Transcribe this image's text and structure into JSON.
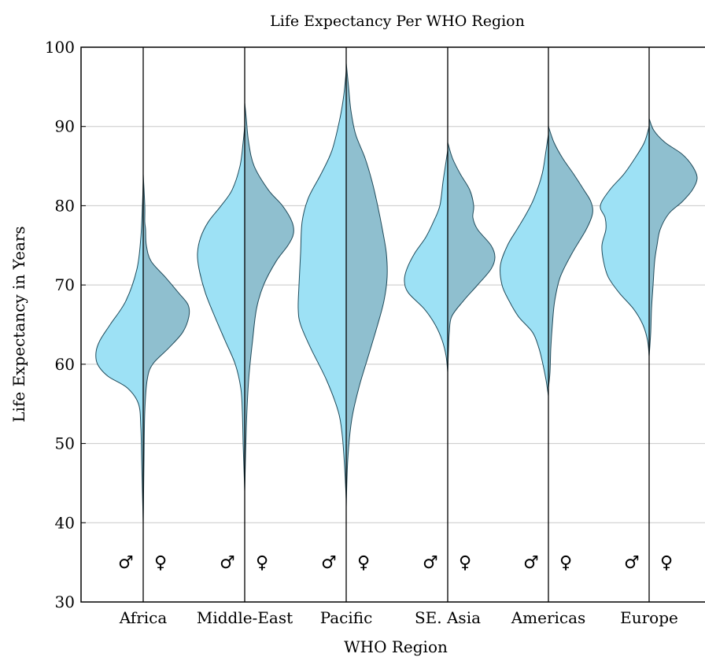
{
  "chart_data": {
    "type": "violin",
    "title": "Life Expectancy Per WHO Region",
    "xlabel": "WHO Region",
    "ylabel": "Life Expectancy in Years",
    "ylim": [
      30,
      100
    ],
    "yticks": [
      30,
      40,
      50,
      60,
      70,
      80,
      90,
      100
    ],
    "grid": "horizontal",
    "categories": [
      "Africa",
      "Middle-East",
      "Pacific",
      "SE. Asia",
      "Americas",
      "Europe"
    ],
    "split_labels": [
      "♂",
      "♀"
    ],
    "colors": {
      "male": "#9de1f5",
      "female": "#8fbfcf",
      "outline": "#1f4a5a"
    },
    "regions": [
      {
        "name": "Africa",
        "male": {
          "min": 40,
          "max": 83,
          "profile": [
            [
              40,
              0
            ],
            [
              44,
              1
            ],
            [
              48,
              2
            ],
            [
              52,
              3
            ],
            [
              55,
              6
            ],
            [
              57,
              20
            ],
            [
              58.5,
              45
            ],
            [
              60,
              58
            ],
            [
              61.5,
              60
            ],
            [
              63,
              55
            ],
            [
              65,
              42
            ],
            [
              68,
              22
            ],
            [
              72,
              8
            ],
            [
              76,
              3
            ],
            [
              80,
              1
            ],
            [
              83,
              0
            ]
          ]
        },
        "female": {
          "min": 40,
          "max": 84,
          "profile": [
            [
              40,
              0
            ],
            [
              48,
              1
            ],
            [
              54,
              2
            ],
            [
              58,
              5
            ],
            [
              60,
              12
            ],
            [
              62,
              32
            ],
            [
              64,
              50
            ],
            [
              66,
              58
            ],
            [
              67.5,
              57
            ],
            [
              69,
              45
            ],
            [
              71,
              28
            ],
            [
              73,
              10
            ],
            [
              75,
              4
            ],
            [
              77,
              3
            ],
            [
              78,
              2
            ],
            [
              80,
              2
            ],
            [
              84,
              0
            ]
          ]
        }
      },
      {
        "name": "Middle-East",
        "male": {
          "min": 44,
          "max": 90,
          "profile": [
            [
              44,
              0
            ],
            [
              47,
              1
            ],
            [
              50,
              2
            ],
            [
              54,
              3
            ],
            [
              57,
              5
            ],
            [
              60,
              12
            ],
            [
              63,
              25
            ],
            [
              66,
              38
            ],
            [
              69,
              50
            ],
            [
              72,
              58
            ],
            [
              74,
              60
            ],
            [
              76,
              56
            ],
            [
              78,
              46
            ],
            [
              80,
              30
            ],
            [
              82,
              16
            ],
            [
              85,
              6
            ],
            [
              88,
              2
            ],
            [
              90,
              0
            ]
          ]
        },
        "female": {
          "min": 44,
          "max": 93,
          "profile": [
            [
              44,
              0
            ],
            [
              52,
              2
            ],
            [
              58,
              5
            ],
            [
              63,
              10
            ],
            [
              67,
              15
            ],
            [
              70,
              24
            ],
            [
              73,
              40
            ],
            [
              75,
              55
            ],
            [
              76.5,
              62
            ],
            [
              78,
              60
            ],
            [
              80,
              48
            ],
            [
              82,
              30
            ],
            [
              85,
              12
            ],
            [
              88,
              5
            ],
            [
              91,
              2
            ],
            [
              93,
              0
            ]
          ]
        }
      },
      {
        "name": "Pacific",
        "male": {
          "min": 43,
          "max": 97,
          "profile": [
            [
              43,
              0
            ],
            [
              47,
              2
            ],
            [
              51,
              5
            ],
            [
              54,
              10
            ],
            [
              58,
              25
            ],
            [
              62,
              45
            ],
            [
              65,
              58
            ],
            [
              67,
              61
            ],
            [
              70,
              60
            ],
            [
              74,
              58
            ],
            [
              78,
              56
            ],
            [
              81,
              48
            ],
            [
              84,
              32
            ],
            [
              87,
              18
            ],
            [
              91,
              8
            ],
            [
              94,
              3
            ],
            [
              97,
              0
            ]
          ]
        },
        "female": {
          "min": 42,
          "max": 98,
          "profile": [
            [
              42,
              0
            ],
            [
              48,
              2
            ],
            [
              53,
              7
            ],
            [
              57,
              16
            ],
            [
              61,
              28
            ],
            [
              65,
              40
            ],
            [
              68,
              48
            ],
            [
              71,
              52
            ],
            [
              74,
              51
            ],
            [
              77,
              46
            ],
            [
              80,
              40
            ],
            [
              83,
              33
            ],
            [
              86,
              24
            ],
            [
              89,
              12
            ],
            [
              92,
              6
            ],
            [
              95,
              3
            ],
            [
              98,
              0
            ]
          ]
        }
      },
      {
        "name": "SE. Asia",
        "male": {
          "min": 59,
          "max": 87,
          "profile": [
            [
              59,
              0
            ],
            [
              61,
              2
            ],
            [
              63,
              7
            ],
            [
              65,
              16
            ],
            [
              67,
              30
            ],
            [
              69,
              50
            ],
            [
              70.5,
              55
            ],
            [
              72,
              52
            ],
            [
              74,
              42
            ],
            [
              76,
              28
            ],
            [
              78,
              18
            ],
            [
              80,
              10
            ],
            [
              83,
              6
            ],
            [
              85,
              3
            ],
            [
              87,
              0
            ]
          ]
        },
        "female": {
          "min": 59,
          "max": 88,
          "profile": [
            [
              59,
              0
            ],
            [
              62,
              1
            ],
            [
              64,
              2
            ],
            [
              66,
              5
            ],
            [
              68,
              20
            ],
            [
              70,
              38
            ],
            [
              72,
              55
            ],
            [
              73.5,
              60
            ],
            [
              75,
              55
            ],
            [
              77,
              38
            ],
            [
              78.5,
              32
            ],
            [
              80,
              33
            ],
            [
              82,
              28
            ],
            [
              84,
              16
            ],
            [
              86,
              6
            ],
            [
              88,
              0
            ]
          ]
        }
      },
      {
        "name": "Americas",
        "male": {
          "min": 56,
          "max": 89,
          "profile": [
            [
              56,
              0
            ],
            [
              58,
              3
            ],
            [
              60,
              7
            ],
            [
              62,
              12
            ],
            [
              64,
              20
            ],
            [
              66,
              38
            ],
            [
              68,
              50
            ],
            [
              70,
              59
            ],
            [
              72.5,
              61
            ],
            [
              75,
              52
            ],
            [
              77,
              40
            ],
            [
              79,
              28
            ],
            [
              81,
              18
            ],
            [
              84,
              8
            ],
            [
              87,
              3
            ],
            [
              89,
              0
            ]
          ]
        },
        "female": {
          "min": 57,
          "max": 90,
          "profile": [
            [
              57,
              0
            ],
            [
              59,
              2
            ],
            [
              62,
              3
            ],
            [
              65,
              5
            ],
            [
              68,
              8
            ],
            [
              71,
              15
            ],
            [
              74,
              30
            ],
            [
              77,
              48
            ],
            [
              79,
              56
            ],
            [
              80.5,
              54
            ],
            [
              82,
              45
            ],
            [
              84,
              32
            ],
            [
              86,
              18
            ],
            [
              88,
              7
            ],
            [
              90,
              0
            ]
          ]
        }
      },
      {
        "name": "Europe",
        "male": {
          "min": 61,
          "max": 90,
          "profile": [
            [
              61,
              0
            ],
            [
              63,
              2
            ],
            [
              65,
              8
            ],
            [
              67,
              20
            ],
            [
              69,
              38
            ],
            [
              71,
              52
            ],
            [
              73,
              58
            ],
            [
              75,
              60
            ],
            [
              77,
              55
            ],
            [
              78.5,
              56
            ],
            [
              80,
              62
            ],
            [
              82,
              50
            ],
            [
              84,
              32
            ],
            [
              86,
              18
            ],
            [
              88,
              6
            ],
            [
              90,
              0
            ]
          ]
        },
        "female": {
          "min": 61,
          "max": 91,
          "profile": [
            [
              61,
              0
            ],
            [
              64,
              2
            ],
            [
              67,
              3
            ],
            [
              70,
              5
            ],
            [
              73,
              7
            ],
            [
              75,
              10
            ],
            [
              77,
              14
            ],
            [
              79,
              25
            ],
            [
              80.5,
              42
            ],
            [
              82,
              55
            ],
            [
              83.5,
              61
            ],
            [
              85,
              55
            ],
            [
              86.5,
              42
            ],
            [
              88,
              20
            ],
            [
              89.5,
              6
            ],
            [
              91,
              0
            ]
          ]
        }
      }
    ]
  }
}
